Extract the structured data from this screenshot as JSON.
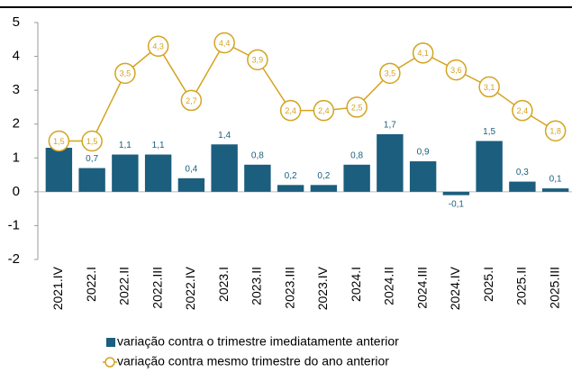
{
  "chart_data": {
    "type": "bar",
    "categories": [
      "2021.IV",
      "2022.I",
      "2022.II",
      "2022.III",
      "2022.IV",
      "2023.I",
      "2023.II",
      "2023.III",
      "2023.IV",
      "2024.I",
      "2024.II",
      "2024.III",
      "2024.IV",
      "2025.I",
      "2025.II",
      "2025.III"
    ],
    "series": [
      {
        "name": "variação contra o trimestre imediatamente anterior",
        "type": "bar",
        "color": "#1b5e7e",
        "values": [
          1.3,
          0.7,
          1.1,
          1.1,
          0.4,
          1.4,
          0.8,
          0.2,
          0.2,
          0.8,
          1.7,
          0.9,
          -0.1,
          1.5,
          0.3,
          0.1
        ],
        "value_labels": [
          "1,3",
          "0,7",
          "1,1",
          "1,1",
          "0,4",
          "1,4",
          "0,8",
          "0,2",
          "0,2",
          "0,8",
          "1,7",
          "0,9",
          "-0,1",
          "1,5",
          "0,3",
          "0,1"
        ]
      },
      {
        "name": "variação contra mesmo trimestre do ano anterior",
        "type": "line",
        "color": "#d4a320",
        "values": [
          1.5,
          1.5,
          3.5,
          4.3,
          2.7,
          4.4,
          3.9,
          2.4,
          2.4,
          2.5,
          3.5,
          4.1,
          3.6,
          3.1,
          2.4,
          1.8
        ],
        "value_labels": [
          "1,5",
          "1,5",
          "3,5",
          "4,3",
          "2,7",
          "4,4",
          "3,9",
          "2,4",
          "2,4",
          "2,5",
          "3,5",
          "4,1",
          "3,6",
          "3,1",
          "2,4",
          "1,8"
        ]
      }
    ],
    "ylim": [
      -2,
      5
    ],
    "yticks": [
      -2,
      -1,
      0,
      1,
      2,
      3,
      4,
      5
    ]
  }
}
